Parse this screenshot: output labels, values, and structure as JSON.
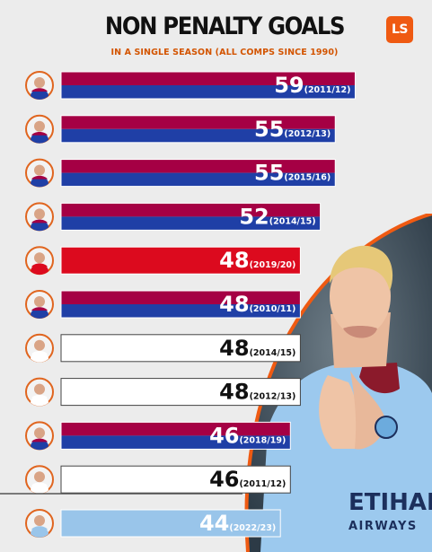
{
  "header": {
    "title": "NON PENALTY GOALS",
    "subtitle": "IN A SINGLE SEASON (ALL COMPS SINCE 1990)",
    "logo_text": "LS"
  },
  "colors": {
    "barcelona_red": "#a50044",
    "barcelona_blue": "#1f3fa6",
    "bayern_red": "#dc0a1e",
    "white": "#ffffff",
    "man_city_blue": "#99c5ea",
    "accent_orange": "#ef5a12"
  },
  "chart_data": {
    "type": "bar",
    "orientation": "horizontal",
    "title": "NON PENALTY GOALS",
    "subtitle": "IN A SINGLE SEASON (ALL COMPS SINCE 1990)",
    "categories": [
      "2011/12",
      "2012/13",
      "2015/16",
      "2014/15",
      "2019/20",
      "2010/11",
      "2014/15",
      "2012/13",
      "2018/19",
      "2011/12",
      "2022/23"
    ],
    "values": [
      59,
      55,
      55,
      52,
      48,
      48,
      48,
      48,
      46,
      46,
      44
    ],
    "bars": [
      {
        "value": 59,
        "season": "(2011/12)",
        "style": "barcelona",
        "avatar": "messi-avatar"
      },
      {
        "value": 55,
        "season": "(2012/13)",
        "style": "barcelona",
        "avatar": "messi-avatar"
      },
      {
        "value": 55,
        "season": "(2015/16)",
        "style": "barcelona",
        "avatar": "suarez-avatar"
      },
      {
        "value": 52,
        "season": "(2014/15)",
        "style": "barcelona",
        "avatar": "messi-avatar"
      },
      {
        "value": 48,
        "season": "(2019/20)",
        "style": "bayern",
        "avatar": "lewandowski-avatar"
      },
      {
        "value": 48,
        "season": "(2010/11)",
        "style": "barcelona",
        "avatar": "messi-avatar"
      },
      {
        "value": 48,
        "season": "(2014/15)",
        "style": "white",
        "avatar": "ronaldo-avatar"
      },
      {
        "value": 48,
        "season": "(2012/13)",
        "style": "white",
        "avatar": "ronaldo-avatar"
      },
      {
        "value": 46,
        "season": "(2018/19)",
        "style": "barcelona",
        "avatar": "messi-avatar"
      },
      {
        "value": 46,
        "season": "(2011/12)",
        "style": "white",
        "avatar": "ronaldo-avatar"
      },
      {
        "value": 44,
        "season": "(2022/23)",
        "style": "city",
        "avatar": "haaland-avatar"
      }
    ]
  }
}
